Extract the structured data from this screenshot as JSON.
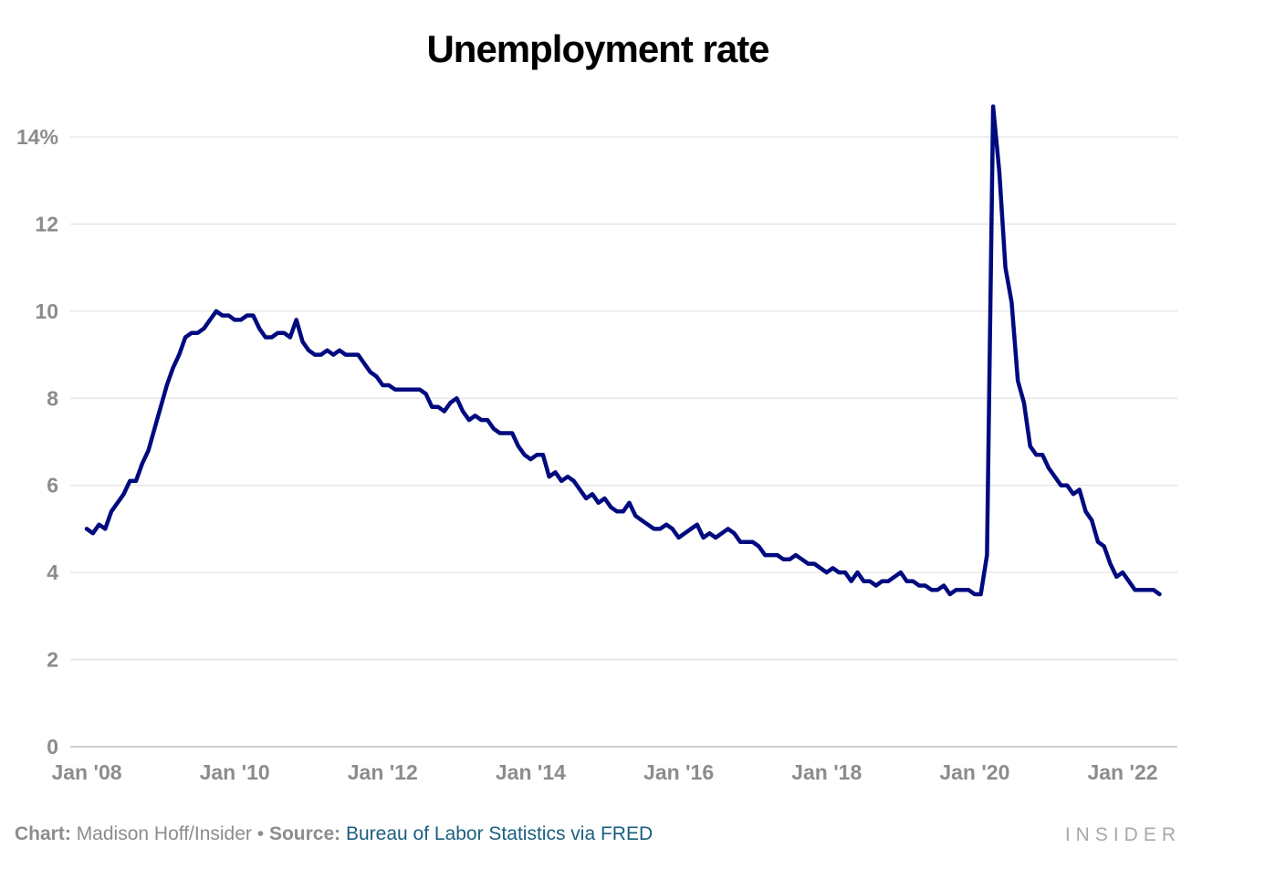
{
  "chart_data": {
    "type": "line",
    "title": "Unemployment rate",
    "xlabel": "",
    "ylabel": "",
    "ylim": [
      0,
      14
    ],
    "yticks": [
      0,
      2,
      4,
      6,
      8,
      10,
      12,
      14
    ],
    "ytick_labels": [
      "0",
      "2",
      "4",
      "6",
      "8",
      "10",
      "12",
      "14%"
    ],
    "xtick_labels": [
      "Jan '08",
      "Jan '10",
      "Jan '12",
      "Jan '14",
      "Jan '16",
      "Jan '18",
      "Jan '20",
      "Jan '22"
    ],
    "x_start": "Jan 2008",
    "x_end": "Jul 2022",
    "grid": true,
    "series": [
      {
        "name": "Unemployment rate",
        "color": "#000a7f",
        "values": [
          5.0,
          4.9,
          5.1,
          5.0,
          5.4,
          5.6,
          5.8,
          6.1,
          6.1,
          6.5,
          6.8,
          7.3,
          7.8,
          8.3,
          8.7,
          9.0,
          9.4,
          9.5,
          9.5,
          9.6,
          9.8,
          10.0,
          9.9,
          9.9,
          9.8,
          9.8,
          9.9,
          9.9,
          9.6,
          9.4,
          9.4,
          9.5,
          9.5,
          9.4,
          9.8,
          9.3,
          9.1,
          9.0,
          9.0,
          9.1,
          9.0,
          9.1,
          9.0,
          9.0,
          9.0,
          8.8,
          8.6,
          8.5,
          8.3,
          8.3,
          8.2,
          8.2,
          8.2,
          8.2,
          8.2,
          8.1,
          7.8,
          7.8,
          7.7,
          7.9,
          8.0,
          7.7,
          7.5,
          7.6,
          7.5,
          7.5,
          7.3,
          7.2,
          7.2,
          7.2,
          6.9,
          6.7,
          6.6,
          6.7,
          6.7,
          6.2,
          6.3,
          6.1,
          6.2,
          6.1,
          5.9,
          5.7,
          5.8,
          5.6,
          5.7,
          5.5,
          5.4,
          5.4,
          5.6,
          5.3,
          5.2,
          5.1,
          5.0,
          5.0,
          5.1,
          5.0,
          4.8,
          4.9,
          5.0,
          5.1,
          4.8,
          4.9,
          4.8,
          4.9,
          5.0,
          4.9,
          4.7,
          4.7,
          4.7,
          4.6,
          4.4,
          4.4,
          4.4,
          4.3,
          4.3,
          4.4,
          4.3,
          4.2,
          4.2,
          4.1,
          4.0,
          4.1,
          4.0,
          4.0,
          3.8,
          4.0,
          3.8,
          3.8,
          3.7,
          3.8,
          3.8,
          3.9,
          4.0,
          3.8,
          3.8,
          3.7,
          3.7,
          3.6,
          3.6,
          3.7,
          3.5,
          3.6,
          3.6,
          3.6,
          3.5,
          3.5,
          4.4,
          14.7,
          13.2,
          11.0,
          10.2,
          8.4,
          7.9,
          6.9,
          6.7,
          6.7,
          6.4,
          6.2,
          6.0,
          6.0,
          5.8,
          5.9,
          5.4,
          5.2,
          4.7,
          4.6,
          4.2,
          3.9,
          4.0,
          3.8,
          3.6,
          3.6,
          3.6,
          3.6,
          3.5
        ]
      }
    ]
  },
  "footer": {
    "chart_label": "Chart:",
    "chart_author": "Madison Hoff/Insider",
    "bullet": "•",
    "source_label": "Source:",
    "source_text": "Bureau of Labor Statistics via FRED"
  },
  "logo": "INSIDER"
}
